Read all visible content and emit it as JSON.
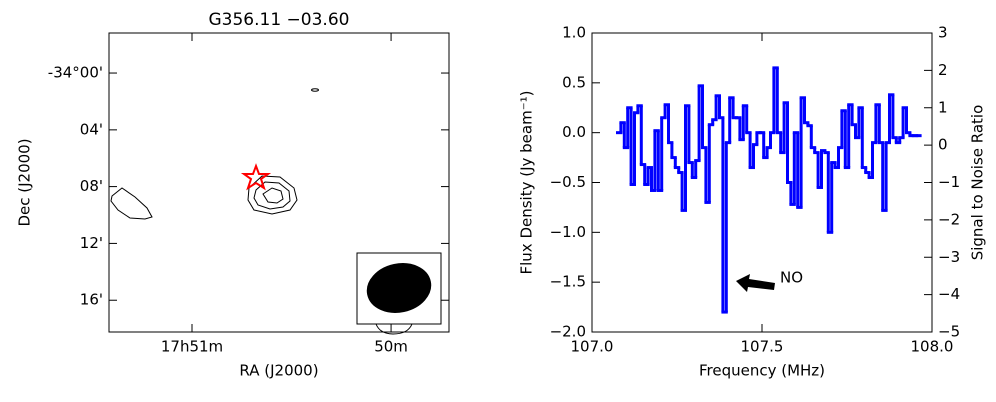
{
  "chart_data": [
    {
      "type": "contour",
      "title": "G356.11 −03.60",
      "xlabel": "RA (J2000)",
      "ylabel": "Dec (J2000)",
      "xlim": [
        51.417,
        49.709
      ],
      "xticks": [
        {
          "value": 51,
          "label": "17h51m"
        },
        {
          "value": 50,
          "label": "50m"
        }
      ],
      "ylim": [
        -34.304,
        -33.953
      ],
      "yticks": [
        {
          "value": -34.0,
          "label": "-34°00'"
        },
        {
          "value": -34.0667,
          "label": "04'"
        },
        {
          "value": -34.1333,
          "label": "08'"
        },
        {
          "value": -34.2,
          "label": "12'"
        },
        {
          "value": -34.2667,
          "label": "16'"
        }
      ]
    },
    {
      "type": "step",
      "xlabel": "Frequency (MHz)",
      "ylabel": "Flux Density (Jy beam⁻¹)",
      "y2label": "Signal to Noise Ratio",
      "xlim": [
        107.0,
        108.0
      ],
      "xticks": [
        {
          "value": 107.0,
          "label": "107.0"
        },
        {
          "value": 107.5,
          "label": "107.5"
        },
        {
          "value": 108.0,
          "label": "108.0"
        }
      ],
      "ylim": [
        -2,
        1
      ],
      "yticks": [
        {
          "value": -2,
          "label": "−2.0"
        },
        {
          "value": -1.5,
          "label": "−1.5"
        },
        {
          "value": -1,
          "label": "−1.0"
        },
        {
          "value": -0.5,
          "label": "−0.5"
        },
        {
          "value": 0,
          "label": "0.0"
        },
        {
          "value": 0.5,
          "label": "0.5"
        },
        {
          "value": 1,
          "label": "1.0"
        }
      ],
      "y2lim": [
        -5,
        3
      ],
      "y2ticks": [
        {
          "value": -5,
          "label": "−5"
        },
        {
          "value": -4,
          "label": "−4"
        },
        {
          "value": -3,
          "label": "−3"
        },
        {
          "value": -2,
          "label": "−2"
        },
        {
          "value": -1,
          "label": "−1"
        },
        0,
        1,
        2,
        3
      ],
      "annotation": "NO",
      "color": "#0000ff",
      "x": [
        107.08,
        107.09,
        107.1,
        107.11,
        107.12,
        107.13,
        107.14,
        107.15,
        107.16,
        107.17,
        107.18,
        107.19,
        107.2,
        107.21,
        107.22,
        107.23,
        107.24,
        107.25,
        107.26,
        107.27,
        107.28,
        107.29,
        107.3,
        107.31,
        107.32,
        107.33,
        107.34,
        107.35,
        107.36,
        107.37,
        107.38,
        107.39,
        107.4,
        107.41,
        107.42,
        107.43,
        107.44,
        107.45,
        107.46,
        107.47,
        107.48,
        107.49,
        107.5,
        107.51,
        107.52,
        107.53,
        107.54,
        107.55,
        107.56,
        107.57,
        107.58,
        107.59,
        107.6,
        107.61,
        107.62,
        107.63,
        107.64,
        107.65,
        107.66,
        107.67,
        107.68,
        107.69,
        107.7,
        107.71,
        107.72,
        107.73,
        107.74,
        107.75,
        107.76,
        107.77,
        107.78,
        107.79,
        107.8,
        107.81,
        107.82,
        107.83,
        107.84,
        107.85,
        107.86,
        107.87,
        107.88,
        107.89,
        107.9,
        107.91,
        107.92,
        107.93,
        107.94,
        107.95,
        107.96
      ],
      "values": [
        0.0,
        0.1,
        -0.15,
        0.25,
        -0.52,
        0.2,
        0.27,
        -0.32,
        -0.52,
        -0.35,
        -0.58,
        0.02,
        -0.58,
        0.15,
        0.28,
        -0.1,
        -0.25,
        -0.35,
        -0.4,
        -0.78,
        0.27,
        -0.3,
        -0.45,
        -0.28,
        0.47,
        -0.15,
        -0.7,
        0.08,
        0.13,
        0.37,
        0.15,
        -1.8,
        -0.1,
        0.35,
        0.15,
        0.15,
        -0.07,
        0.27,
        0.0,
        -0.35,
        -0.12,
        0.0,
        0.0,
        -0.25,
        -0.15,
        0.0,
        0.65,
        0.0,
        -0.2,
        0.3,
        -0.5,
        -0.72,
        0.0,
        -0.75,
        0.35,
        0.1,
        0.07,
        -0.15,
        -0.2,
        -0.55,
        -0.18,
        -0.2,
        -1.0,
        -0.3,
        -0.35,
        -0.15,
        0.22,
        -0.35,
        0.28,
        0.08,
        -0.05,
        0.25,
        -0.35,
        -0.4,
        -0.45,
        -0.1,
        0.28,
        -0.1,
        -0.78,
        -0.1,
        0.38,
        -0.05,
        -0.1,
        -0.05,
        0.25,
        0.0,
        -0.03,
        -0.03,
        -0.03
      ]
    }
  ]
}
